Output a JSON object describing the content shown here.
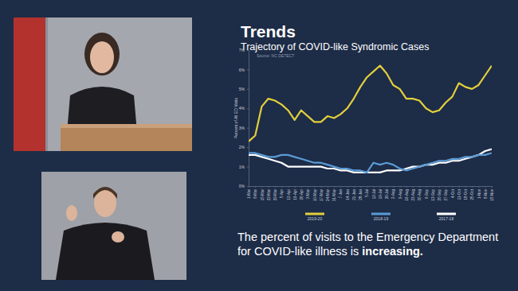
{
  "chart_data": {
    "type": "line",
    "title": "Trends",
    "subtitle": "Trajectory of COVID-like Syndromic Cases",
    "ylabel": "Percent of All ED Visits",
    "annotations": [
      "Source: NC DETECT",
      "The percent of visits to the Emergency Department for COVID-like illness is",
      "increasing."
    ],
    "categories": [
      "1-Mar",
      "8-Mar",
      "15-Mar",
      "22-Mar",
      "29-Mar",
      "5-Apr",
      "12-Apr",
      "19-Apr",
      "26-Apr",
      "3-May",
      "10-May",
      "17-May",
      "24-May",
      "31-May",
      "7-Jun",
      "14-Jun",
      "21-Jun",
      "28-Jun",
      "5-Jul",
      "12-Jul",
      "19-Jul",
      "26-Jul",
      "2-Aug",
      "9-Aug",
      "16-Aug",
      "23-Aug",
      "30-Aug",
      "6-Sep",
      "13-Sep",
      "20-Sep",
      "27-Sep",
      "4-Oct",
      "11-Oct",
      "18-Oct",
      "25-Oct",
      "1-Nov",
      "8-Nov",
      "15-Nov"
    ],
    "series": [
      {
        "name": "2019-20",
        "color": "#e3cf3c",
        "values": [
          2.3,
          2.6,
          4.1,
          4.5,
          4.4,
          4.2,
          3.9,
          3.4,
          3.9,
          3.6,
          3.3,
          3.3,
          3.6,
          3.5,
          3.7,
          4.0,
          4.5,
          5.1,
          5.6,
          5.9,
          6.2,
          5.8,
          5.2,
          5.0,
          4.5,
          4.5,
          4.4,
          4.0,
          3.8,
          3.9,
          4.3,
          4.6,
          5.3,
          5.1,
          5.0,
          5.2,
          5.7,
          6.2
        ]
      },
      {
        "name": "2018-19",
        "color": "#5b9bd5",
        "values": [
          1.7,
          1.7,
          1.6,
          1.5,
          1.5,
          1.6,
          1.6,
          1.5,
          1.4,
          1.3,
          1.2,
          1.2,
          1.1,
          1.0,
          0.9,
          0.9,
          0.8,
          0.8,
          0.7,
          1.2,
          1.1,
          1.2,
          1.1,
          0.9,
          0.8,
          0.9,
          1.0,
          1.1,
          1.2,
          1.3,
          1.3,
          1.4,
          1.4,
          1.5,
          1.5,
          1.6,
          1.6,
          1.7
        ]
      },
      {
        "name": "2017-18",
        "color": "#ffffff",
        "values": [
          1.6,
          1.6,
          1.5,
          1.4,
          1.3,
          1.2,
          1.0,
          1.0,
          1.0,
          1.0,
          1.0,
          1.0,
          0.9,
          0.9,
          0.8,
          0.8,
          0.7,
          0.7,
          0.7,
          0.7,
          0.7,
          0.8,
          0.8,
          0.8,
          0.9,
          1.0,
          1.0,
          1.1,
          1.1,
          1.2,
          1.2,
          1.3,
          1.3,
          1.4,
          1.5,
          1.6,
          1.8,
          1.9
        ]
      }
    ],
    "ylim": [
      0,
      7
    ],
    "yticks": [
      {
        "value": 0,
        "label": "0%"
      },
      {
        "value": 1,
        "label": "1%"
      },
      {
        "value": 2,
        "label": "2%"
      },
      {
        "value": 3,
        "label": "3%"
      },
      {
        "value": 4,
        "label": "4%"
      },
      {
        "value": 5,
        "label": "5%"
      },
      {
        "value": 6,
        "label": "6%"
      },
      {
        "value": 7,
        "label": "7%"
      }
    ],
    "grid": false,
    "legend": "bottom"
  }
}
